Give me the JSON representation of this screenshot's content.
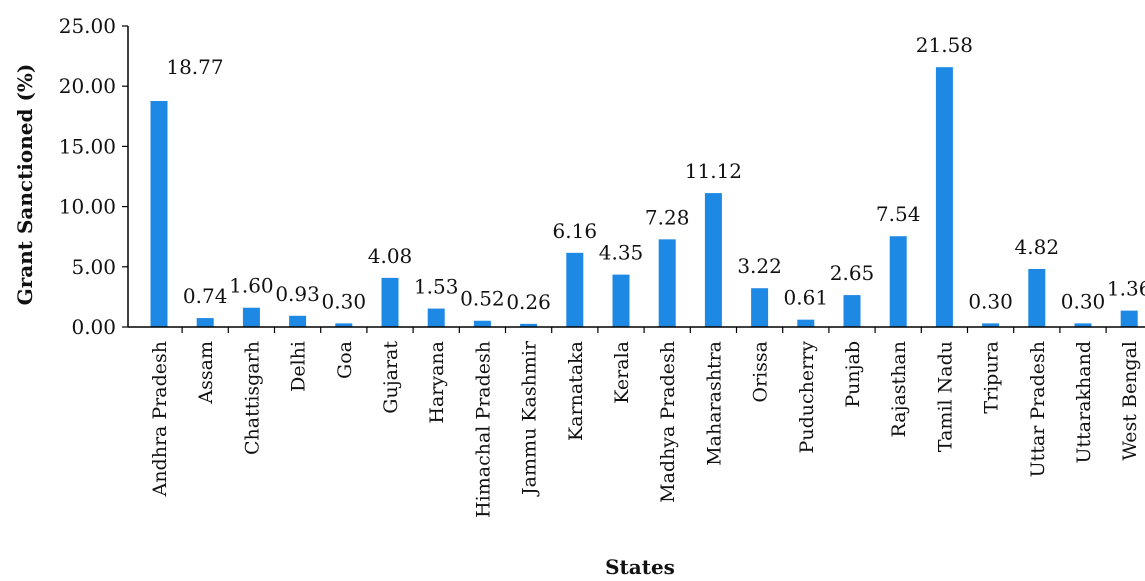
{
  "chart_data": {
    "type": "bar",
    "xlabel": "States",
    "ylabel": "Grant Sanctioned (%)",
    "ylim": [
      0,
      25
    ],
    "yticks": [
      "0.00",
      "5.00",
      "10.00",
      "15.00",
      "20.00",
      "25.00"
    ],
    "grid": false,
    "bar_color": "#1e88e5",
    "categories": [
      "Andhra Pradesh",
      "Assam",
      "Chattisgarh",
      "Delhi",
      "Goa",
      "Gujarat",
      "Haryana",
      "Himachal Pradesh",
      "Jammu Kashmir",
      "Karnataka",
      "Kerala",
      "Madhya Pradesh",
      "Maharashtra",
      "Orissa",
      "Puducherry",
      "Punjab",
      "Rajasthan",
      "Tamil Nadu",
      "Tripura",
      "Uttar Pradesh",
      "Uttarakhand",
      "West Bengal"
    ],
    "values": [
      18.77,
      0.74,
      1.6,
      0.93,
      0.3,
      4.08,
      1.53,
      0.52,
      0.26,
      6.16,
      4.35,
      7.28,
      11.12,
      3.22,
      0.61,
      2.65,
      7.54,
      21.58,
      0.3,
      4.82,
      0.3,
      1.36
    ],
    "value_labels": [
      "18.77",
      "0.74",
      "1.60",
      "0.93",
      "0.30",
      "4.08",
      "1.53",
      "0.52",
      "0.26",
      "6.16",
      "4.35",
      "7.28",
      "11.12",
      "3.22",
      "0.61",
      "2.65",
      "7.54",
      "21.58",
      "0.30",
      "4.82",
      "0.30",
      "1.36"
    ]
  }
}
